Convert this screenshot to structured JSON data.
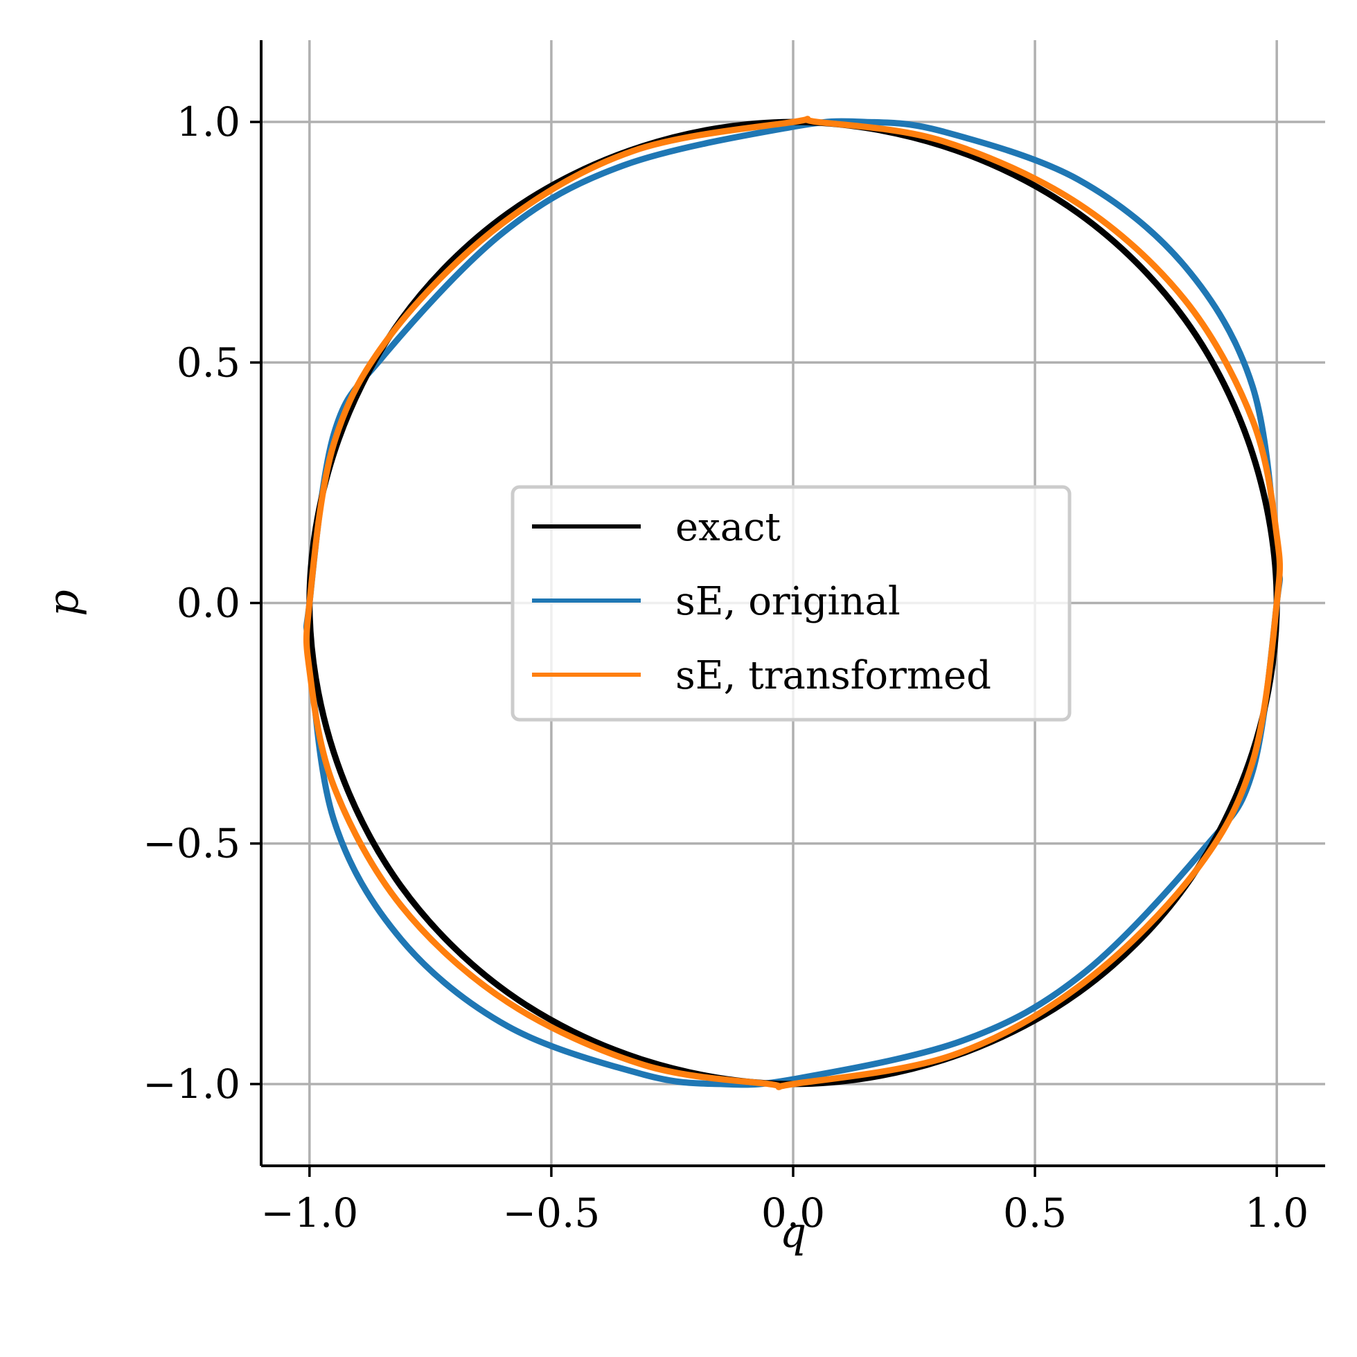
{
  "chart_data": {
    "type": "line",
    "xlabel": "q",
    "ylabel": "p",
    "xlim": [
      -1.1,
      1.1
    ],
    "ylim": [
      -1.17,
      1.17
    ],
    "x_ticks": [
      -1.0,
      -0.5,
      0.0,
      0.5,
      1.0
    ],
    "y_ticks": [
      -1.0,
      -0.5,
      0.0,
      0.5,
      1.0
    ],
    "x_tick_labels": [
      "−1.0",
      "−0.5",
      "0.0",
      "0.5",
      "1.0"
    ],
    "y_tick_labels": [
      "−1.0",
      "−0.5",
      "0.0",
      "0.5",
      "1.0"
    ],
    "grid": true,
    "legend_position": "center",
    "series": [
      {
        "name": "exact",
        "color": "#000000",
        "points": [
          [
            1.0,
            0.0
          ],
          [
            0.95,
            -0.31
          ],
          [
            0.81,
            -0.59
          ],
          [
            0.59,
            -0.81
          ],
          [
            0.31,
            -0.95
          ],
          [
            0.0,
            -1.0
          ],
          [
            -0.31,
            -0.95
          ],
          [
            -0.59,
            -0.81
          ],
          [
            -0.81,
            -0.59
          ],
          [
            -0.95,
            -0.31
          ],
          [
            -1.0,
            0.0
          ],
          [
            -0.95,
            0.31
          ],
          [
            -0.81,
            0.59
          ],
          [
            -0.59,
            0.81
          ],
          [
            -0.31,
            0.95
          ],
          [
            0.0,
            1.0
          ],
          [
            0.31,
            0.95
          ],
          [
            0.59,
            0.81
          ],
          [
            0.81,
            0.59
          ],
          [
            0.95,
            0.31
          ],
          [
            1.0,
            0.0
          ]
        ]
      },
      {
        "name": "sE, original",
        "color": "#1f77b4",
        "points": [
          [
            1.0,
            0.0
          ],
          [
            0.95,
            -0.35
          ],
          [
            0.85,
            -0.51
          ],
          [
            0.6,
            -0.77
          ],
          [
            0.35,
            -0.91
          ],
          [
            0.0,
            -0.99
          ],
          [
            -0.15,
            -1.0
          ],
          [
            -0.31,
            -0.98
          ],
          [
            -0.59,
            -0.88
          ],
          [
            -0.81,
            -0.7
          ],
          [
            -0.95,
            -0.45
          ],
          [
            -1.0,
            -0.1
          ],
          [
            -1.0,
            0.0
          ],
          [
            -0.95,
            0.35
          ],
          [
            -0.85,
            0.51
          ],
          [
            -0.6,
            0.77
          ],
          [
            -0.35,
            0.91
          ],
          [
            0.0,
            0.99
          ],
          [
            0.15,
            1.0
          ],
          [
            0.31,
            0.98
          ],
          [
            0.59,
            0.88
          ],
          [
            0.81,
            0.7
          ],
          [
            0.95,
            0.45
          ],
          [
            1.0,
            0.1
          ],
          [
            1.0,
            0.0
          ]
        ]
      },
      {
        "name": "sE, transformed",
        "color": "#ff7f0e",
        "points": [
          [
            1.0,
            0.0
          ],
          [
            0.95,
            -0.33
          ],
          [
            0.83,
            -0.56
          ],
          [
            0.6,
            -0.79
          ],
          [
            0.33,
            -0.94
          ],
          [
            0.0,
            -1.0
          ],
          [
            -0.05,
            -1.0
          ],
          [
            -0.31,
            -0.96
          ],
          [
            -0.59,
            -0.83
          ],
          [
            -0.81,
            -0.63
          ],
          [
            -0.95,
            -0.38
          ],
          [
            -1.0,
            -0.14
          ],
          [
            -1.0,
            0.0
          ],
          [
            -0.95,
            0.33
          ],
          [
            -0.83,
            0.56
          ],
          [
            -0.6,
            0.79
          ],
          [
            -0.33,
            0.94
          ],
          [
            0.0,
            1.0
          ],
          [
            0.05,
            1.0
          ],
          [
            0.31,
            0.96
          ],
          [
            0.59,
            0.83
          ],
          [
            0.81,
            0.63
          ],
          [
            0.95,
            0.38
          ],
          [
            1.0,
            0.14
          ],
          [
            1.0,
            0.0
          ]
        ]
      }
    ]
  }
}
